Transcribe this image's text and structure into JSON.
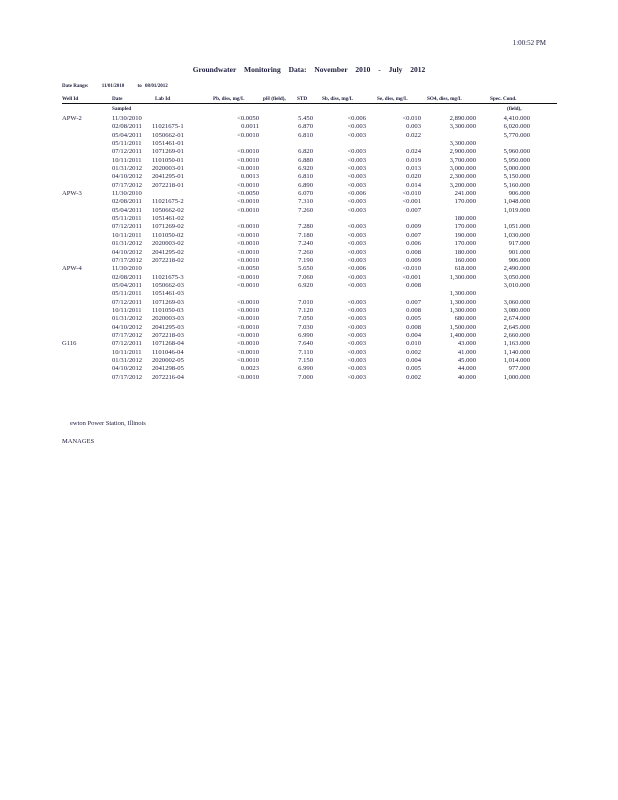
{
  "time": "1:00:52 PM",
  "title": "Groundwater Monitoring Data: November 2010 - July 2012",
  "date_range": {
    "label": "Date Range:",
    "from": "11/01/2010",
    "to_label": "to",
    "to": "08/01/2012"
  },
  "columns": {
    "well": "Well Id",
    "date": "Date",
    "date2": "Sampled",
    "lab": "Lab Id",
    "pb": "Pb, diss, mg/L",
    "ph": "pH (field),",
    "std": "STD",
    "sb": "Sb, diss, mg/L",
    "se": "Se, diss, mg/L",
    "so4": "SO4, diss, mg/L",
    "spc": "Spec. Cond.",
    "spc2": "(field),"
  },
  "rows": [
    [
      "APW-2",
      "11/30/2010",
      "",
      "<0.0050",
      "5.450",
      "<0.006",
      "<0.010",
      "2,890.000",
      "4,410.000"
    ],
    [
      "",
      "02/08/2011",
      "11021675-1",
      "0.0011",
      "6.870",
      "<0.003",
      "0.003",
      "3,300.000",
      "6,020.000"
    ],
    [
      "",
      "05/04/2011",
      "1050662-01",
      "<0.0010",
      "6.810",
      "<0.003",
      "0.022",
      "",
      "5,770.000"
    ],
    [
      "",
      "05/11/2011",
      "1051461-01",
      "",
      "",
      "",
      "",
      "3,300.000",
      ""
    ],
    [
      "",
      "07/12/2011",
      "1071269-01",
      "<0.0010",
      "6.820",
      "<0.003",
      "0.024",
      "2,900.000",
      "5,960.000"
    ],
    [
      "",
      "10/11/2011",
      "1101050-01",
      "<0.0010",
      "6.880",
      "<0.003",
      "0.019",
      "3,700.000",
      "5,950.000"
    ],
    [
      "",
      "01/31/2012",
      "2020003-01",
      "<0.0010",
      "6.920",
      "<0.003",
      "0.013",
      "3,000.000",
      "5,000.000"
    ],
    [
      "",
      "04/10/2012",
      "2041295-01",
      "0.0013",
      "6.810",
      "<0.003",
      "0.020",
      "2,300.000",
      "5,150.000"
    ],
    [
      "",
      "07/17/2012",
      "2072218-01",
      "<0.0010",
      "6.890",
      "<0.003",
      "0.014",
      "3,200.000",
      "5,160.000"
    ],
    [
      "APW-3",
      "11/30/2010",
      "",
      "<0.0050",
      "6.070",
      "<0.006",
      "<0.010",
      "241.000",
      "906.000"
    ],
    [
      "",
      "02/08/2011",
      "11021675-2",
      "<0.0010",
      "7.310",
      "<0.003",
      "<0.001",
      "170.000",
      "1,048.000"
    ],
    [
      "",
      "05/04/2011",
      "1050662-02",
      "<0.0010",
      "7.260",
      "<0.003",
      "0.007",
      "",
      "1,019.000"
    ],
    [
      "",
      "05/11/2011",
      "1051461-02",
      "",
      "",
      "",
      "",
      "180.000",
      ""
    ],
    [
      "",
      "07/12/2011",
      "1071269-02",
      "<0.0010",
      "7.280",
      "<0.003",
      "0.009",
      "170.000",
      "1,051.000"
    ],
    [
      "",
      "10/11/2011",
      "1101050-02",
      "<0.0010",
      "7.180",
      "<0.003",
      "0.007",
      "190.000",
      "1,030.000"
    ],
    [
      "",
      "01/31/2012",
      "2020003-02",
      "<0.0010",
      "7.240",
      "<0.003",
      "0.006",
      "170.000",
      "917.000"
    ],
    [
      "",
      "04/10/2012",
      "2041295-02",
      "<0.0010",
      "7.260",
      "<0.003",
      "0.008",
      "180.000",
      "901.000"
    ],
    [
      "",
      "07/17/2012",
      "2072218-02",
      "<0.0010",
      "7.190",
      "<0.003",
      "0.009",
      "160.000",
      "906.000"
    ],
    [
      "APW-4",
      "11/30/2010",
      "",
      "<0.0050",
      "5.650",
      "<0.006",
      "<0.010",
      "618.000",
      "2,490.000"
    ],
    [
      "",
      "02/08/2011",
      "11021675-3",
      "<0.0010",
      "7.060",
      "<0.003",
      "<0.001",
      "1,300.000",
      "3,050.000"
    ],
    [
      "",
      "05/04/2011",
      "1050662-03",
      "<0.0010",
      "6.920",
      "<0.003",
      "0.008",
      "",
      "3,010.000"
    ],
    [
      "",
      "05/11/2011",
      "1051461-03",
      "",
      "",
      "",
      "",
      "1,300.000",
      ""
    ],
    [
      "",
      "07/12/2011",
      "1071269-03",
      "<0.0010",
      "7.010",
      "<0.003",
      "0.007",
      "1,300.000",
      "3,060.000"
    ],
    [
      "",
      "10/11/2011",
      "1101050-03",
      "<0.0010",
      "7.120",
      "<0.003",
      "0.008",
      "1,300.000",
      "3,080.000"
    ],
    [
      "",
      "01/31/2012",
      "2020003-03",
      "<0.0010",
      "7.050",
      "<0.003",
      "0.005",
      "680.000",
      "2,674.000"
    ],
    [
      "",
      "04/10/2012",
      "2041295-03",
      "<0.0010",
      "7.030",
      "<0.003",
      "0.008",
      "1,500.000",
      "2,645.000"
    ],
    [
      "",
      "07/17/2012",
      "2072218-03",
      "<0.0010",
      "6.990",
      "<0.003",
      "0.004",
      "1,400.000",
      "2,660.000"
    ],
    [
      "G116",
      "07/12/2011",
      "1071268-04",
      "<0.0010",
      "7.640",
      "<0.003",
      "0.010",
      "43.000",
      "1,163.000"
    ],
    [
      "",
      "10/11/2011",
      "1101046-04",
      "<0.0010",
      "7.110",
      "<0.003",
      "0.002",
      "41.000",
      "1,140.000"
    ],
    [
      "",
      "01/31/2012",
      "2020002-05",
      "<0.0010",
      "7.150",
      "<0.003",
      "0.004",
      "45.000",
      "1,014.000"
    ],
    [
      "",
      "04/10/2012",
      "2041298-05",
      "0.0023",
      "6.990",
      "<0.003",
      "0.005",
      "44.000",
      "977.000"
    ],
    [
      "",
      "07/17/2012",
      "2072216-04",
      "<0.0010",
      "7.000",
      "<0.003",
      "0.002",
      "40.000",
      "1,000.000"
    ]
  ],
  "footer": {
    "line1": "ewton Power Station, Illinois",
    "line2": "MANAGES"
  }
}
